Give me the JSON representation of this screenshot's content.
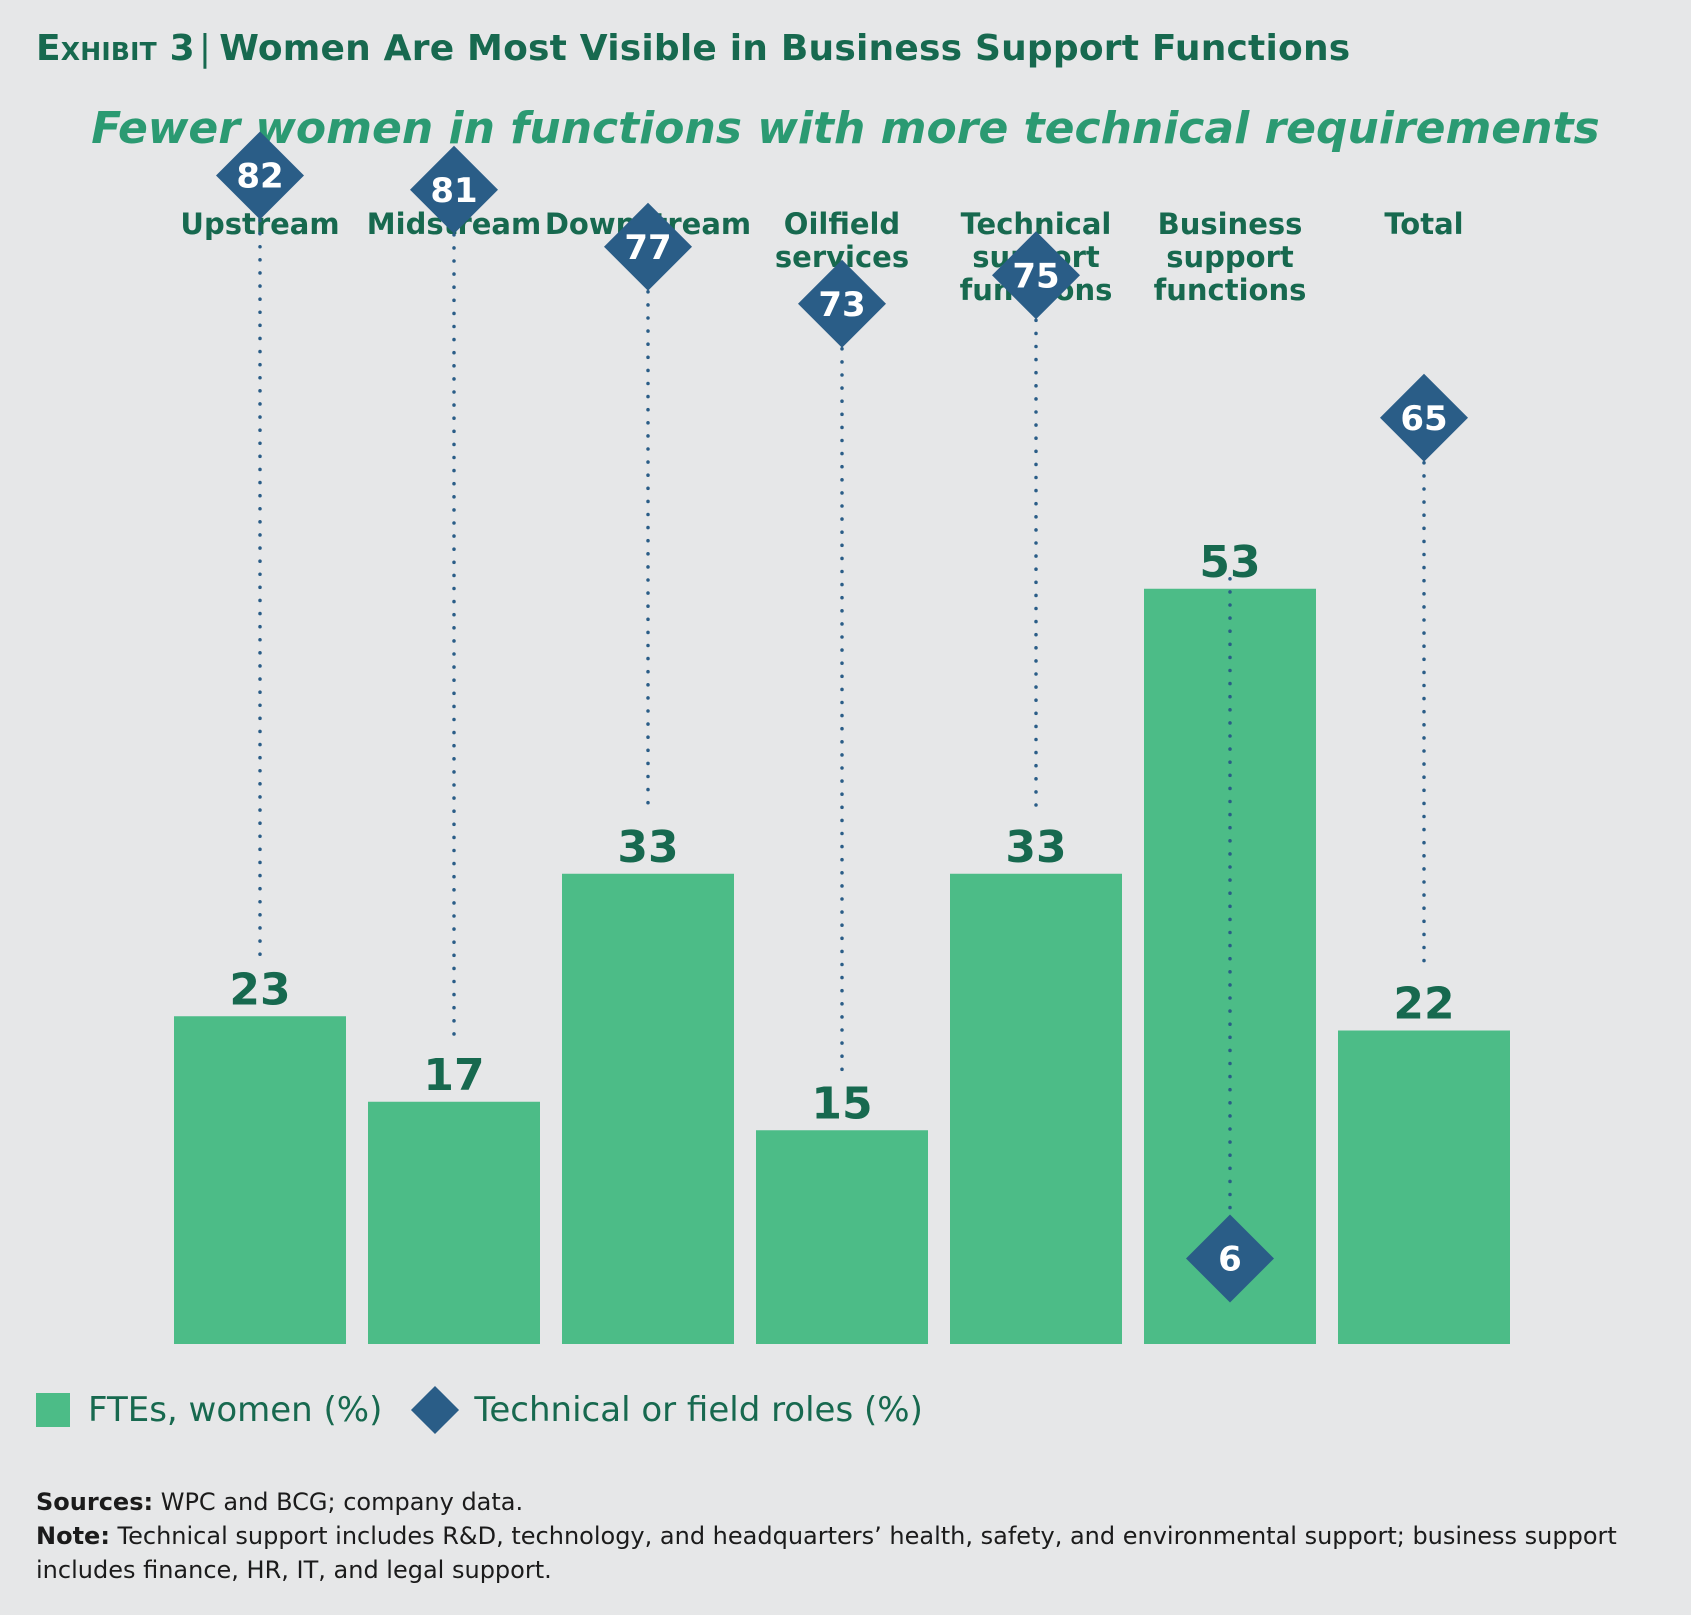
{
  "header": {
    "exhibit": "Exhibit 3",
    "separator": "|",
    "title": "Women Are Most Visible in Business Support Functions",
    "subtitle": "Fewer women in functions with more technical requirements"
  },
  "chart_data": {
    "type": "bar",
    "categories": [
      [
        "Upstream"
      ],
      [
        "Midstream"
      ],
      [
        "Downstream"
      ],
      [
        "Oilfield",
        "services"
      ],
      [
        "Technical",
        "support",
        "functions"
      ],
      [
        "Business",
        "support",
        "functions"
      ],
      [
        "Total"
      ]
    ],
    "series": [
      {
        "name": "FTEs, women (%)",
        "type": "bar",
        "values": [
          23,
          17,
          33,
          15,
          33,
          53,
          22
        ]
      },
      {
        "name": "Technical or field roles (%)",
        "type": "diamond",
        "values": [
          82,
          81,
          77,
          73,
          75,
          6,
          65
        ]
      }
    ],
    "colors": {
      "bar": "#4cbc87",
      "diamond": "#2a5d87",
      "label": "#17694f",
      "connector": "#2a5d87"
    },
    "ylim": [
      0,
      100
    ],
    "grid": false,
    "legend_position": "bottom-left"
  },
  "legend": {
    "bar_label": "FTEs, women (%)",
    "diamond_label": "Technical or field roles (%)"
  },
  "notes": {
    "sources_label": "Sources:",
    "sources_text": " WPC and BCG; company data.",
    "note_label": "Note:",
    "note_text": " Technical support includes R&D, technology, and headquarters’ health, safety, and environmental support; business support includes finance, HR, IT, and legal support."
  }
}
